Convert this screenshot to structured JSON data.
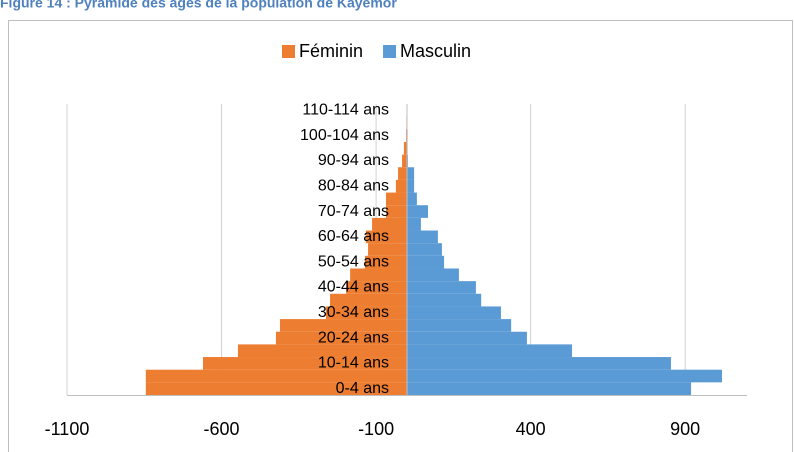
{
  "chart_data": {
    "type": "bar",
    "orientation": "horizontal",
    "title": "Figure 14 : Pyramide des âges de la population de Kayemor",
    "categories": [
      "0-4 ans",
      null,
      "10-14 ans",
      null,
      "20-24 ans",
      null,
      "30-34 ans",
      null,
      "40-44 ans",
      null,
      "50-54 ans",
      null,
      "60-64 ans",
      null,
      "70-74 ans",
      null,
      "80-84 ans",
      null,
      "90-94 ans",
      null,
      "100-104 ans",
      null,
      "110-114 ans"
    ],
    "series": [
      {
        "name": "Féminin",
        "color": "#ed7d31",
        "values": [
          -845,
          -845,
          -660,
          -547,
          -424,
          -411,
          -262,
          -249,
          -197,
          -184,
          -136,
          -126,
          -133,
          -113,
          -68,
          -68,
          -36,
          -29,
          -16,
          -10,
          -3,
          -2,
          -1
        ]
      },
      {
        "name": "Masculin",
        "color": "#5b9bd5",
        "values": [
          919,
          1019,
          854,
          534,
          388,
          337,
          304,
          240,
          223,
          168,
          120,
          113,
          100,
          45,
          68,
          32,
          23,
          23,
          3,
          2,
          2,
          1,
          1
        ]
      }
    ],
    "xlim": [
      -1100,
      1100
    ],
    "xticks": [
      -1100,
      -600,
      -100,
      400,
      900
    ],
    "grid": true,
    "legend": "top"
  }
}
